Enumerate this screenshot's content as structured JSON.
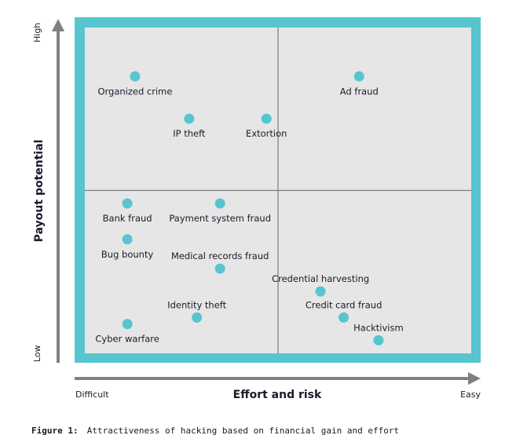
{
  "chart_data": {
    "type": "scatter",
    "subtype": "quadrant",
    "title": "",
    "xlabel": "Effort and risk",
    "ylabel": "Payout potential",
    "x_end_labels": {
      "min": "Difficult",
      "max": "Easy"
    },
    "y_end_labels": {
      "min": "Low",
      "max": "High"
    },
    "xlim": [
      0,
      10
    ],
    "ylim": [
      0,
      10
    ],
    "quadrant_divider": {
      "x": 5,
      "y": 5
    },
    "grid": false,
    "legend": "none",
    "colors": {
      "frame": "#57c5cf",
      "plot_bg": "#e6e6e6",
      "point": "#57c5cf",
      "axis": "#808080",
      "divider": "#7a7a7a"
    },
    "points": [
      {
        "label": "Organized crime",
        "x": 1.3,
        "y": 8.5
      },
      {
        "label": "Ad fraud",
        "x": 7.1,
        "y": 8.5
      },
      {
        "label": "IP theft",
        "x": 2.7,
        "y": 7.2
      },
      {
        "label": "Extortion",
        "x": 4.7,
        "y": 7.2
      },
      {
        "label": "Bank fraud",
        "x": 1.1,
        "y": 4.6
      },
      {
        "label": "Payment system fraud",
        "x": 3.5,
        "y": 4.6
      },
      {
        "label": "Bug bounty",
        "x": 1.1,
        "y": 3.5
      },
      {
        "label": "Medical records fraud",
        "x": 3.5,
        "y": 2.6
      },
      {
        "label": "Credential harvesting",
        "x": 6.1,
        "y": 1.9
      },
      {
        "label": "Credit card fraud",
        "x": 6.7,
        "y": 1.1
      },
      {
        "label": "Hacktivism",
        "x": 7.6,
        "y": 0.4
      },
      {
        "label": "Identity theft",
        "x": 2.9,
        "y": 1.1
      },
      {
        "label": "Cyber warfare",
        "x": 1.1,
        "y": 0.9
      }
    ]
  },
  "caption": {
    "prefix": "Figure 1:",
    "text": "Attractiveness of hacking based on financial gain and effort"
  }
}
